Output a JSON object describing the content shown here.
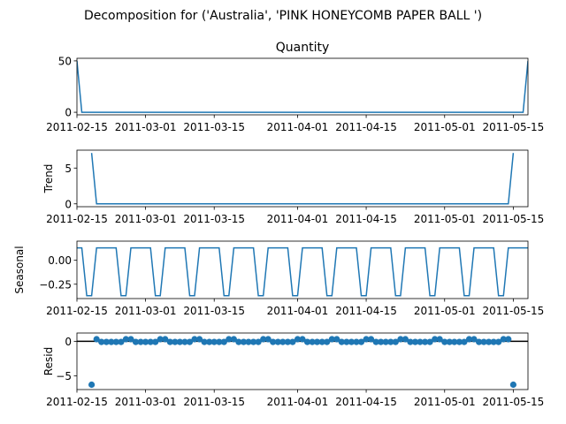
{
  "suptitle": "Decomposition for ('Australia', 'PINK  HONEYCOMB PAPER BALL ')",
  "colors": {
    "line": "#1f77b4",
    "axis": "#000000",
    "background": "#ffffff"
  },
  "chart_data": [
    {
      "type": "line",
      "name": "observed",
      "title": "Quantity",
      "ylabel": "",
      "xlim": [
        "2011-02-15",
        "2011-05-18"
      ],
      "ylim": [
        -2.5,
        52.5
      ],
      "yticks": [
        {
          "value": 0,
          "label": "0"
        },
        {
          "value": 50,
          "label": "50"
        }
      ],
      "xticks": [
        {
          "value": "2011-02-15",
          "label": "2011-02-15"
        },
        {
          "value": "2011-03-01",
          "label": "2011-03-01"
        },
        {
          "value": "2011-03-15",
          "label": "2011-03-15"
        },
        {
          "value": "2011-04-01",
          "label": "2011-04-01"
        },
        {
          "value": "2011-04-15",
          "label": "2011-04-15"
        },
        {
          "value": "2011-05-01",
          "label": "2011-05-01"
        },
        {
          "value": "2011-05-15",
          "label": "2011-05-15"
        }
      ],
      "points": [
        [
          "2011-02-15",
          50
        ],
        [
          "2011-02-16",
          0
        ],
        [
          "2011-05-17",
          0
        ],
        [
          "2011-05-18",
          50
        ]
      ]
    },
    {
      "type": "line",
      "name": "trend",
      "title": "",
      "ylabel": "Trend",
      "xlim": [
        "2011-02-15",
        "2011-05-18"
      ],
      "ylim": [
        -0.4,
        7.5
      ],
      "yticks": [
        {
          "value": 0,
          "label": "0"
        },
        {
          "value": 5,
          "label": "5"
        }
      ],
      "xticks": [
        {
          "value": "2011-02-15",
          "label": "2011-02-15"
        },
        {
          "value": "2011-03-01",
          "label": "2011-03-01"
        },
        {
          "value": "2011-03-15",
          "label": "2011-03-15"
        },
        {
          "value": "2011-04-01",
          "label": "2011-04-01"
        },
        {
          "value": "2011-04-15",
          "label": "2011-04-15"
        },
        {
          "value": "2011-05-01",
          "label": "2011-05-01"
        },
        {
          "value": "2011-05-15",
          "label": "2011-05-15"
        }
      ],
      "points": [
        [
          "2011-02-18",
          7.1
        ],
        [
          "2011-02-19",
          0
        ],
        [
          "2011-05-14",
          0
        ],
        [
          "2011-05-15",
          7.1
        ]
      ]
    },
    {
      "type": "line",
      "name": "seasonal",
      "title": "",
      "ylabel": "Seasonal",
      "xlim": [
        "2011-02-15",
        "2011-05-18"
      ],
      "ylim": [
        -0.4,
        0.2
      ],
      "yticks": [
        {
          "value": 0.0,
          "label": "0.00"
        },
        {
          "value": -0.25,
          "label": "−0.25"
        }
      ],
      "xticks": [
        {
          "value": "2011-02-15",
          "label": "2011-02-15"
        },
        {
          "value": "2011-03-01",
          "label": "2011-03-01"
        },
        {
          "value": "2011-03-15",
          "label": "2011-03-15"
        },
        {
          "value": "2011-04-01",
          "label": "2011-04-01"
        },
        {
          "value": "2011-04-15",
          "label": "2011-04-15"
        },
        {
          "value": "2011-05-01",
          "label": "2011-05-01"
        },
        {
          "value": "2011-05-15",
          "label": "2011-05-15"
        }
      ],
      "period_days": 7,
      "pattern": [
        0.13,
        0.13,
        -0.37,
        -0.37,
        0.13,
        0.13,
        0.13
      ],
      "start": "2011-02-15",
      "end": "2011-05-18"
    },
    {
      "type": "scatter",
      "name": "resid",
      "title": "",
      "ylabel": "Resid",
      "xlim": [
        "2011-02-15",
        "2011-05-18"
      ],
      "ylim": [
        -7,
        1.2
      ],
      "yticks": [
        {
          "value": 0,
          "label": "0"
        },
        {
          "value": -5,
          "label": "−5"
        }
      ],
      "xticks": [
        {
          "value": "2011-02-15",
          "label": "2011-02-15"
        },
        {
          "value": "2011-03-01",
          "label": "2011-03-01"
        },
        {
          "value": "2011-03-15",
          "label": "2011-03-15"
        },
        {
          "value": "2011-04-01",
          "label": "2011-04-01"
        },
        {
          "value": "2011-04-15",
          "label": "2011-04-15"
        },
        {
          "value": "2011-05-01",
          "label": "2011-05-01"
        },
        {
          "value": "2011-05-15",
          "label": "2011-05-15"
        }
      ],
      "zero_line": true,
      "outliers": [
        [
          "2011-02-18",
          -6.3
        ],
        [
          "2011-05-15",
          -6.3
        ]
      ],
      "start": "2011-02-19",
      "end": "2011-05-14",
      "period_days": 7,
      "pattern": [
        0.3,
        -0.1,
        -0.1,
        -0.1,
        -0.1,
        -0.1,
        0.3
      ]
    }
  ]
}
